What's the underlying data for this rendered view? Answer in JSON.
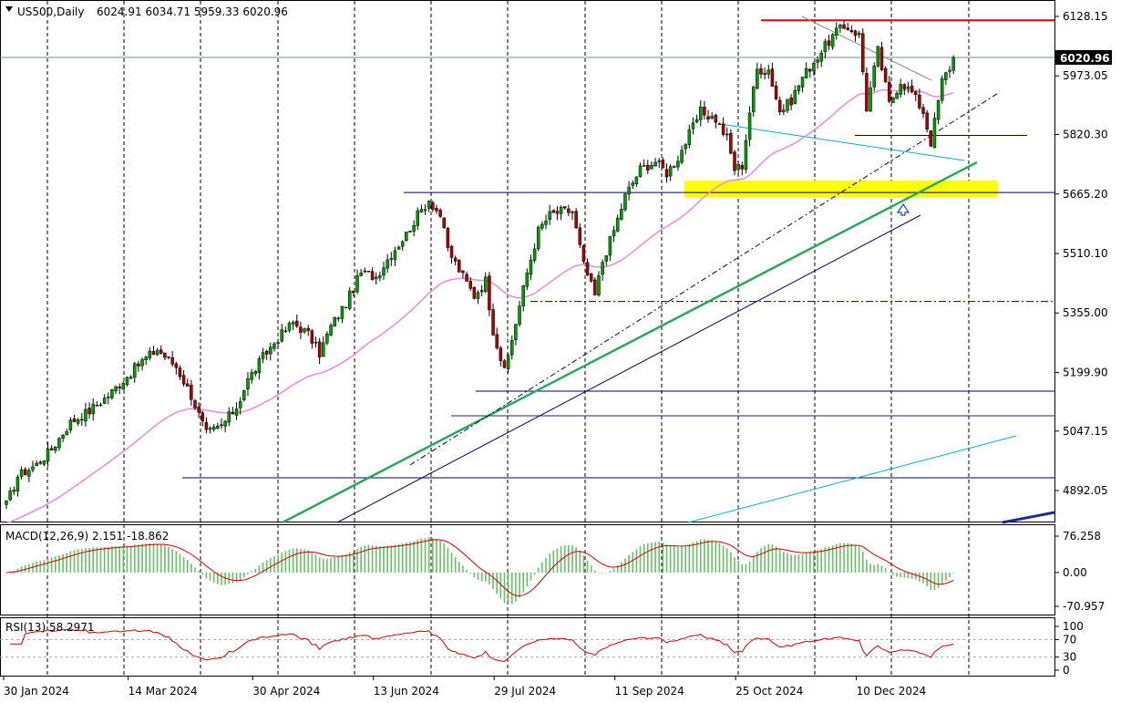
{
  "chart_data": {
    "type": "candlestick",
    "symbol_header": "US500,Daily",
    "ohlc_header": "6024.91 6034.71 5959.33 6020.96",
    "last_price": "6020.96",
    "price_ticks": [
      "6128.15",
      "5973.05",
      "5820.30",
      "5665.20",
      "5510.10",
      "5355.00",
      "5199.90",
      "5047.15",
      "4892.05"
    ],
    "price_tick_values": [
      6128.15,
      5973.05,
      5820.3,
      5665.2,
      5510.1,
      5355.0,
      5199.9,
      5047.15,
      4892.05
    ],
    "price_range": [
      4860,
      6142
    ],
    "date_labels": [
      "30 Jan 2024",
      "14 Mar 2024",
      "30 Apr 2024",
      "13 Jun 2024",
      "29 Jul 2024",
      "11 Sep 2024",
      "25 Oct 2024",
      "10 Dec 2024"
    ],
    "date_label_bars": [
      0,
      33,
      66,
      98,
      130,
      162,
      194,
      226
    ],
    "bar_count": 252,
    "close_series_anchors": [
      [
        0,
        4855
      ],
      [
        3,
        4930
      ],
      [
        8,
        4960
      ],
      [
        12,
        5000
      ],
      [
        17,
        5070
      ],
      [
        22,
        5100
      ],
      [
        27,
        5140
      ],
      [
        31,
        5180
      ],
      [
        36,
        5230
      ],
      [
        40,
        5260
      ],
      [
        45,
        5215
      ],
      [
        49,
        5140
      ],
      [
        53,
        5040
      ],
      [
        57,
        5060
      ],
      [
        61,
        5110
      ],
      [
        64,
        5180
      ],
      [
        68,
        5240
      ],
      [
        72,
        5290
      ],
      [
        76,
        5330
      ],
      [
        80,
        5300
      ],
      [
        83,
        5250
      ],
      [
        86,
        5320
      ],
      [
        90,
        5380
      ],
      [
        94,
        5460
      ],
      [
        98,
        5450
      ],
      [
        102,
        5510
      ],
      [
        106,
        5560
      ],
      [
        109,
        5610
      ],
      [
        112,
        5650
      ],
      [
        115,
        5610
      ],
      [
        117,
        5520
      ],
      [
        121,
        5450
      ],
      [
        124,
        5400
      ],
      [
        127,
        5440
      ],
      [
        129,
        5310
      ],
      [
        132,
        5200
      ],
      [
        135,
        5330
      ],
      [
        138,
        5460
      ],
      [
        141,
        5570
      ],
      [
        144,
        5610
      ],
      [
        147,
        5620
      ],
      [
        150,
        5620
      ],
      [
        153,
        5480
      ],
      [
        156,
        5400
      ],
      [
        158,
        5490
      ],
      [
        161,
        5570
      ],
      [
        164,
        5660
      ],
      [
        168,
        5730
      ],
      [
        172,
        5750
      ],
      [
        175,
        5720
      ],
      [
        178,
        5760
      ],
      [
        181,
        5820
      ],
      [
        184,
        5880
      ],
      [
        188,
        5860
      ],
      [
        191,
        5810
      ],
      [
        193,
        5730
      ],
      [
        195,
        5740
      ],
      [
        197,
        5880
      ],
      [
        199,
        5990
      ],
      [
        202,
        5990
      ],
      [
        205,
        5880
      ],
      [
        208,
        5910
      ],
      [
        211,
        5970
      ],
      [
        214,
        6010
      ],
      [
        217,
        6050
      ],
      [
        220,
        6090
      ],
      [
        223,
        6100
      ],
      [
        226,
        6080
      ],
      [
        228,
        5890
      ],
      [
        231,
        6040
      ],
      [
        234,
        5900
      ],
      [
        237,
        5960
      ],
      [
        240,
        5930
      ],
      [
        243,
        5880
      ],
      [
        245,
        5800
      ],
      [
        248,
        5960
      ],
      [
        250,
        5995
      ],
      [
        251,
        6020.96
      ]
    ],
    "indicators": {
      "ma_label": "",
      "horizontal_levels": [
        6118,
        5680,
        5808,
        5385,
        5182,
        5148,
        4970
      ],
      "macd": {
        "label": "MACD(12,26,9) 2.151 -18.862",
        "ticks": [
          "76.258",
          "0.00",
          "-70.957"
        ],
        "range": [
          -70.957,
          76.258
        ]
      },
      "rsi": {
        "label": "RSI(13) 58.2971",
        "ticks": [
          "100",
          "70",
          "30",
          "0"
        ],
        "levels": [
          70,
          30
        ],
        "range": [
          0,
          100
        ]
      }
    },
    "colors": {
      "bull": "#00a000",
      "bear": "#b00000",
      "ma": "#e890e0",
      "macd_hist": "#66c066",
      "macd_signal": "#d00000",
      "rsi_line": "#d00000",
      "resistance": "#e00000",
      "support_zone": "#ffff00",
      "trend_green": "#2aa860",
      "trend_navy": "#000066",
      "trend_cyan": "#00b0c8",
      "grid": "#000000",
      "current_price": "#6b8fa8"
    }
  }
}
